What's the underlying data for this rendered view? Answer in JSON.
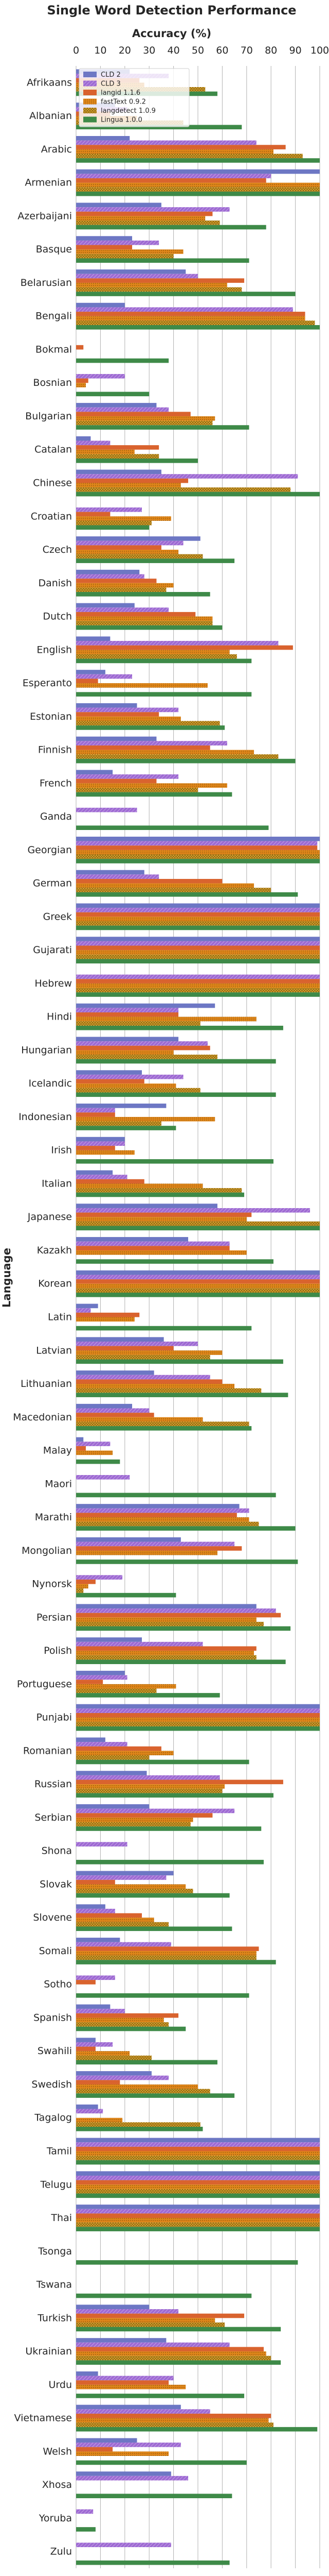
{
  "chart_data": {
    "type": "bar",
    "orientation": "horizontal",
    "title": "Single Word Detection Performance",
    "xlabel": "Accuracy (%)",
    "ylabel": "Language",
    "xlim": [
      0,
      100
    ],
    "xticks": [
      0,
      10,
      20,
      30,
      40,
      50,
      60,
      70,
      80,
      90,
      100
    ],
    "x_axis_position": "top",
    "grid": true,
    "legend_position": "top-left",
    "categories": [
      "Afrikaans",
      "Albanian",
      "Arabic",
      "Armenian",
      "Azerbaijani",
      "Basque",
      "Belarusian",
      "Bengali",
      "Bokmal",
      "Bosnian",
      "Bulgarian",
      "Catalan",
      "Chinese",
      "Croatian",
      "Czech",
      "Danish",
      "Dutch",
      "English",
      "Esperanto",
      "Estonian",
      "Finnish",
      "French",
      "Ganda",
      "Georgian",
      "German",
      "Greek",
      "Gujarati",
      "Hebrew",
      "Hindi",
      "Hungarian",
      "Icelandic",
      "Indonesian",
      "Irish",
      "Italian",
      "Japanese",
      "Kazakh",
      "Korean",
      "Latin",
      "Latvian",
      "Lithuanian",
      "Macedonian",
      "Malay",
      "Maori",
      "Marathi",
      "Mongolian",
      "Nynorsk",
      "Persian",
      "Polish",
      "Portuguese",
      "Punjabi",
      "Romanian",
      "Russian",
      "Serbian",
      "Shona",
      "Slovak",
      "Slovene",
      "Somali",
      "Sotho",
      "Spanish",
      "Swahili",
      "Swedish",
      "Tagalog",
      "Tamil",
      "Telugu",
      "Thai",
      "Tsonga",
      "Tswana",
      "Turkish",
      "Ukrainian",
      "Urdu",
      "Vietnamese",
      "Welsh",
      "Xhosa",
      "Yoruba",
      "Zulu"
    ],
    "series": [
      {
        "name": "CLD 2",
        "color": "#6d77c4",
        "hatch": "none",
        "values": [
          22,
          16,
          22,
          100,
          35,
          23,
          45,
          20,
          0,
          0,
          33,
          6,
          35,
          0,
          51,
          26,
          24,
          14,
          12,
          25,
          33,
          15,
          0,
          100,
          28,
          100,
          100,
          0,
          57,
          42,
          27,
          37,
          20,
          15,
          58,
          46,
          100,
          9,
          36,
          32,
          23,
          3,
          0,
          67,
          43,
          0,
          74,
          27,
          20,
          100,
          12,
          29,
          30,
          0,
          40,
          12,
          18,
          0,
          14,
          8,
          31,
          9,
          100,
          100,
          100,
          0,
          0,
          30,
          37,
          9,
          43,
          25,
          39,
          0,
          0
        ]
      },
      {
        "name": "CLD 3",
        "color": "#9e6ad3",
        "hatch": "diagonal",
        "values": [
          38,
          21,
          74,
          80,
          63,
          34,
          50,
          89,
          0,
          20,
          38,
          14,
          91,
          27,
          44,
          28,
          38,
          83,
          23,
          42,
          62,
          42,
          25,
          99,
          34,
          100,
          100,
          100,
          42,
          54,
          44,
          16,
          20,
          21,
          96,
          63,
          100,
          6,
          50,
          55,
          30,
          14,
          22,
          71,
          65,
          19,
          82,
          52,
          21,
          100,
          21,
          59,
          65,
          21,
          37,
          16,
          39,
          16,
          20,
          15,
          38,
          11,
          100,
          100,
          100,
          0,
          0,
          42,
          63,
          40,
          55,
          43,
          46,
          7,
          39
        ]
      },
      {
        "name": "langid 1.1.6",
        "color": "#d9632e",
        "hatch": "none",
        "values": [
          26,
          14,
          86,
          78,
          56,
          23,
          69,
          94,
          3,
          5,
          47,
          34,
          46,
          14,
          35,
          33,
          49,
          89,
          9,
          34,
          55,
          33,
          0,
          99,
          60,
          100,
          100,
          100,
          42,
          55,
          28,
          16,
          16,
          28,
          72,
          63,
          100,
          26,
          40,
          60,
          32,
          4,
          0,
          66,
          68,
          8,
          84,
          74,
          11,
          100,
          35,
          85,
          56,
          0,
          16,
          27,
          75,
          8,
          42,
          8,
          18,
          0,
          100,
          100,
          100,
          0,
          0,
          69,
          77,
          38,
          80,
          15,
          0,
          0,
          0
        ]
      },
      {
        "name": "fastText 0.9.2",
        "color": "#e0861a",
        "hatch": "dotted",
        "values": [
          28,
          25,
          81,
          100,
          53,
          44,
          62,
          94,
          0,
          4,
          57,
          24,
          43,
          39,
          42,
          40,
          56,
          63,
          54,
          43,
          73,
          62,
          0,
          100,
          73,
          100,
          100,
          100,
          74,
          40,
          41,
          57,
          24,
          52,
          70,
          70,
          100,
          24,
          60,
          65,
          52,
          15,
          0,
          71,
          58,
          5,
          74,
          73,
          41,
          100,
          40,
          61,
          48,
          0,
          45,
          32,
          74,
          0,
          36,
          22,
          50,
          19,
          100,
          100,
          100,
          0,
          0,
          57,
          78,
          45,
          79,
          38,
          0,
          0,
          0
        ]
      },
      {
        "name": "langdetect 1.0.9",
        "color": "#dba32b",
        "hatch": "crosshatch",
        "values": [
          53,
          44,
          93,
          100,
          59,
          40,
          68,
          98,
          0,
          0,
          56,
          34,
          88,
          31,
          52,
          37,
          56,
          66,
          0,
          59,
          83,
          50,
          0,
          100,
          80,
          100,
          100,
          100,
          51,
          58,
          51,
          35,
          0,
          68,
          100,
          0,
          100,
          0,
          55,
          76,
          71,
          0,
          0,
          75,
          0,
          3,
          77,
          74,
          33,
          100,
          30,
          60,
          47,
          0,
          48,
          38,
          74,
          0,
          38,
          31,
          55,
          51,
          100,
          100,
          100,
          0,
          0,
          61,
          80,
          0,
          81,
          0,
          0,
          0,
          0
        ]
      },
      {
        "name": "Lingua 1.0.0",
        "color": "#3e8a48",
        "hatch": "none",
        "values": [
          58,
          68,
          100,
          100,
          78,
          71,
          90,
          100,
          38,
          30,
          71,
          50,
          100,
          30,
          65,
          55,
          60,
          72,
          72,
          61,
          90,
          64,
          79,
          100,
          91,
          100,
          100,
          100,
          85,
          82,
          82,
          41,
          81,
          69,
          100,
          81,
          100,
          72,
          85,
          87,
          72,
          18,
          82,
          90,
          91,
          41,
          88,
          86,
          59,
          100,
          71,
          81,
          76,
          77,
          63,
          64,
          82,
          71,
          45,
          58,
          65,
          52,
          100,
          100,
          100,
          91,
          72,
          84,
          84,
          69,
          99,
          70,
          64,
          8,
          63
        ]
      }
    ]
  }
}
